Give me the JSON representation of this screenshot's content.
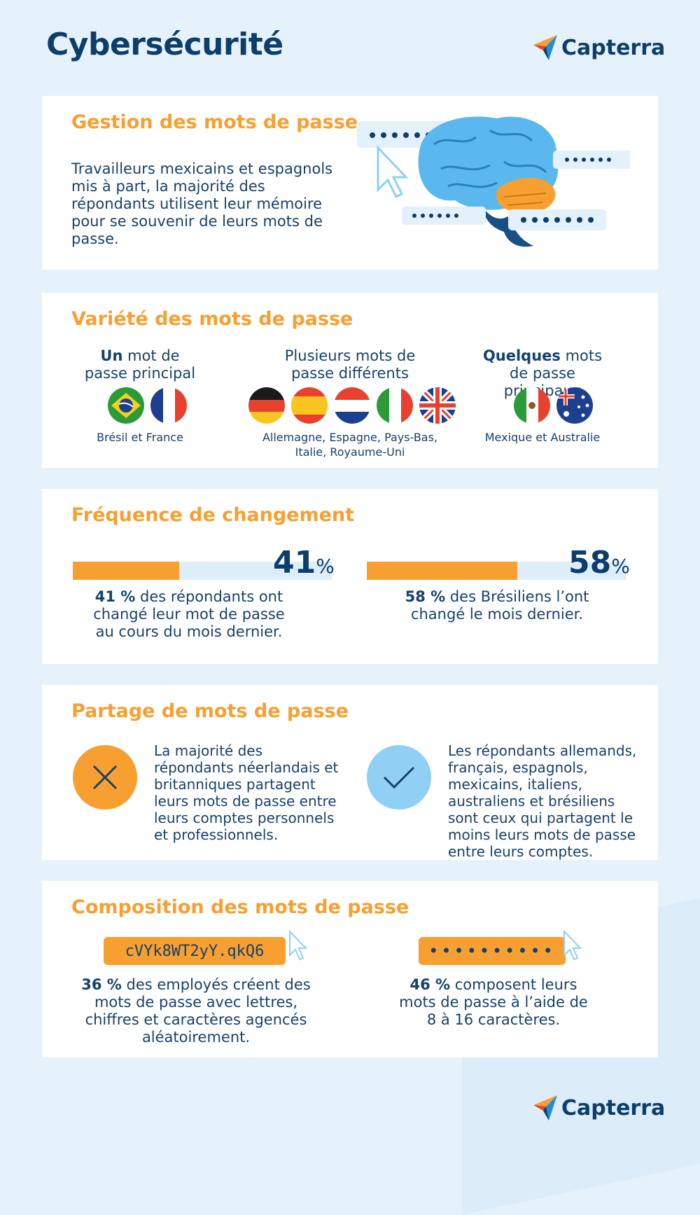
{
  "page": {
    "title": "Cybersécurité",
    "logo_text": "Capterra"
  },
  "colors": {
    "accent": "#f7a031",
    "navy": "#0d3e6b",
    "light_blue": "#ddeef9",
    "check_blue": "#8fd0f4"
  },
  "password_management": {
    "heading": "Gestion des mots de passe",
    "body": "Travailleurs mexicains et espagnols mis à part, la majorité des répondants utilisent leur mémoire pour se souvenir de leurs mots de passe.",
    "illustration": "brain-with-password-fields"
  },
  "password_variety": {
    "heading": "Variété des mots de passe",
    "groups": [
      {
        "title_bold": "Un",
        "title_rest": " mot de passe principal",
        "countries": "Brésil et France",
        "flags": [
          "brazil-flag-icon",
          "france-flag-icon"
        ]
      },
      {
        "title_bold": "",
        "title_rest": "Plusieurs mots de passe différents",
        "countries": "Allemagne, Espagne, Pays-Bas, Italie, Royaume-Uni",
        "flags": [
          "germany-flag-icon",
          "spain-flag-icon",
          "netherlands-flag-icon",
          "italy-flag-icon",
          "uk-flag-icon"
        ]
      },
      {
        "title_bold": "Quelques",
        "title_rest": " mots de passe principaux",
        "countries": "Mexique et Australie",
        "flags": [
          "mexico-flag-icon",
          "australia-flag-icon"
        ]
      }
    ]
  },
  "change_frequency": {
    "heading": "Fréquence de changement",
    "stats": [
      {
        "value": 41,
        "value_text": "41",
        "sym": "%",
        "bold": "41 %",
        "rest": " des répondants ont changé leur mot de passe au cours du mois dernier."
      },
      {
        "value": 58,
        "value_text": "58",
        "sym": "%",
        "bold": "58 %",
        "rest": " des Brésiliens l’ont changé le mois dernier."
      }
    ]
  },
  "password_sharing": {
    "heading": "Partage de mots de passe",
    "items": [
      {
        "icon": "cross-icon",
        "text": "La majorité des répondants néerlandais et britanniques partagent leurs mots de passe entre leurs comptes personnels et professionnels."
      },
      {
        "icon": "check-icon",
        "text": "Les répondants allemands, français, espagnols, mexicains, italiens, australiens et brésiliens sont ceux qui partagent le moins leurs mots de passe entre leurs comptes."
      }
    ]
  },
  "password_composition": {
    "heading": "Composition des mots de passe",
    "items": [
      {
        "field": "cVYk8WT2yY.qkQ6",
        "bold": "36 %",
        "rest": " des employés créent des mots de passe avec lettres, chiffres et caractères agencés aléatoirement."
      },
      {
        "field": "••••••••••",
        "bold": "46 %",
        "rest": " composent leurs mots de passe à l’aide de 8 à 16 caractères."
      }
    ]
  }
}
